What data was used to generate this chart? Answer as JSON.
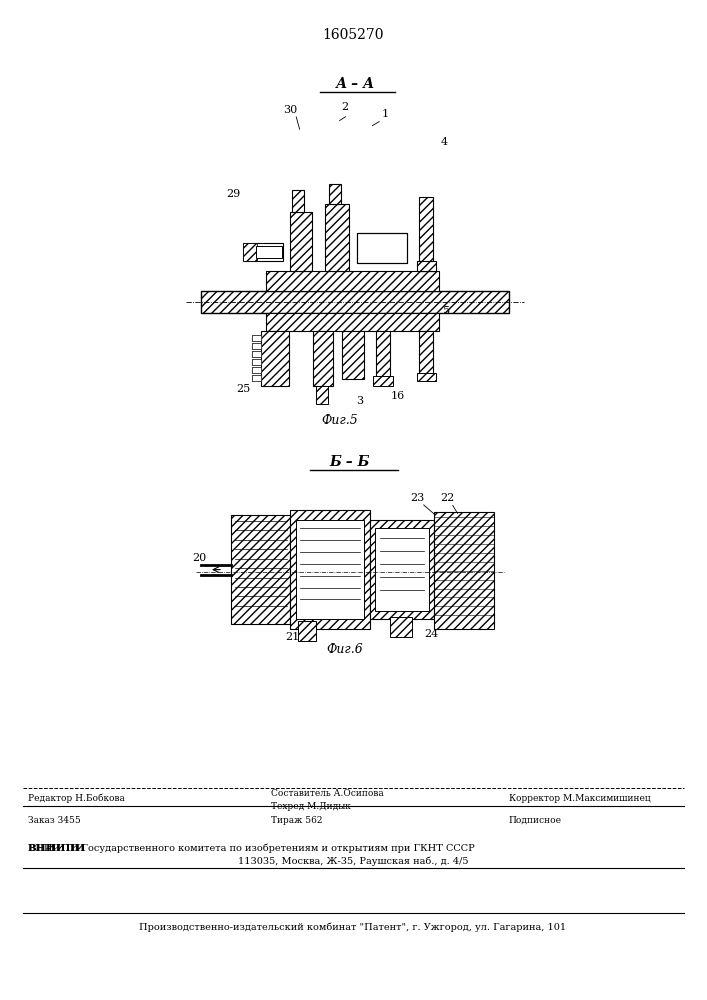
{
  "patent_number": "1605270",
  "fig5_label": "А – А",
  "fig5_caption": "Фиг.5",
  "fig6_label": "Б – Б",
  "fig6_caption": "Фиг.6",
  "footer": {
    "line1_left": "Редактор Н.Бобкова",
    "line1_center_top": "Составитель А.Осипова",
    "line1_center_bot": "Техред М.Дидык",
    "line1_right": "Корректор М.Максимишинец",
    "line2_left": "Заказ 3455",
    "line2_center": "Тираж 562",
    "line2_right": "Подписное",
    "line3_bold": "ВНИИПИ",
    "line3_rest": " Государственного комитета по изобретениям и открытиям при ГКНТ СССР",
    "line4": "113035, Москва, Ж-35, Раушская наб., д. 4/5",
    "line5": "Производственно-издательский комбинат \"Патент\", г. Ужгород, ул. Гагарина, 101"
  },
  "bg_color": "#ffffff",
  "line_color": "#000000"
}
